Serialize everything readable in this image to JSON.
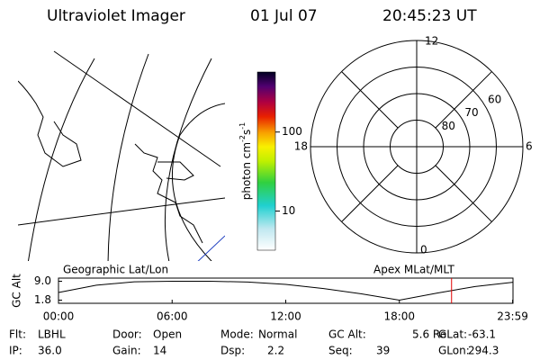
{
  "header": {
    "instrument": "Ultraviolet Imager",
    "date": "01 Jul 07",
    "time": "20:45:23 UT"
  },
  "colorbar": {
    "label": [
      "photon cm",
      "-2",
      "s",
      "-1"
    ],
    "lim": [
      3.2,
      575
    ],
    "ticks": [
      10,
      100
    ],
    "log": true
  },
  "polar": {
    "rlim": [
      90,
      50
    ],
    "rticks": [
      60,
      70,
      80
    ],
    "mlt_labels": [
      "12",
      "6",
      "0",
      "18"
    ]
  },
  "chart_data": {
    "type": "line",
    "left_label": "Geographic Lat/Lon",
    "right_label": "Apex MLat/MLT",
    "y_label": "GC Alt",
    "x": [
      0,
      2,
      4,
      6,
      8,
      10,
      12,
      14,
      16,
      18,
      20,
      22,
      24
    ],
    "series": [
      {
        "name": "GC Alt",
        "color": "#000000",
        "values": [
          4.7,
          7.5,
          8.8,
          9.0,
          9.0,
          8.7,
          7.8,
          6.2,
          4.2,
          1.8,
          4.5,
          7.0,
          8.6
        ]
      }
    ],
    "xlim": [
      0,
      24
    ],
    "xticks": [
      {
        "value": 0,
        "label": "00:00"
      },
      {
        "value": 6,
        "label": "06:00"
      },
      {
        "value": 12,
        "label": "12:00"
      },
      {
        "value": 18,
        "label": "18:00"
      },
      {
        "value": 23.98,
        "label": "23:59"
      }
    ],
    "ylim": [
      0.6,
      10.2
    ],
    "yticks": [
      {
        "value": 1.8,
        "label": "1.8"
      },
      {
        "value": 9,
        "label": "9.0"
      }
    ],
    "cursor_x": 20.756,
    "cursor_color": "#e00000"
  },
  "footer": [
    [
      {
        "label": "Flt:",
        "value": "LBHL"
      },
      {
        "label": "Door:",
        "value": "Open"
      },
      {
        "label": "Mode:",
        "value": "Normal"
      },
      {
        "label": "GC Alt:",
        "value": "5.6 Re"
      },
      {
        "label": "GLat:",
        "value": "-63.1"
      }
    ],
    [
      {
        "label": "IP:",
        "value": "36.0"
      },
      {
        "label": "Gain:",
        "value": "14"
      },
      {
        "label": "Dsp:",
        "value": "2.2"
      },
      {
        "label": "Seq:",
        "value": "39"
      },
      {
        "label": "GLon:",
        "value": "294.3"
      }
    ]
  ]
}
